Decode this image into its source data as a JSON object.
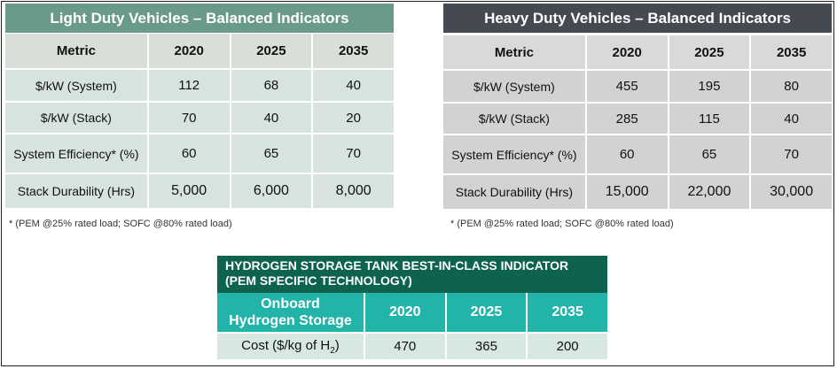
{
  "light_duty": {
    "title": "Light Duty Vehicles – Balanced Indicators",
    "header": [
      "Metric",
      "2020",
      "2025",
      "2035"
    ],
    "rows": [
      [
        "$/kW (System)",
        "112",
        "68",
        "40"
      ],
      [
        "$/kW (Stack)",
        "70",
        "40",
        "20"
      ],
      [
        "System Efficiency* (%)",
        "60",
        "65",
        "70"
      ],
      [
        "Stack Durability (Hrs)",
        "5,000",
        "6,000",
        "8,000"
      ]
    ],
    "footnote": "* (PEM @25% rated load;  SOFC @80% rated load)"
  },
  "heavy_duty": {
    "title": "Heavy Duty Vehicles – Balanced Indicators",
    "header": [
      "Metric",
      "2020",
      "2025",
      "2035"
    ],
    "rows": [
      [
        "$/kW (System)",
        "455",
        "195",
        "80"
      ],
      [
        "$/kW (Stack)",
        "285",
        "115",
        "40"
      ],
      [
        "System Efficiency* (%)",
        "60",
        "65",
        "70"
      ],
      [
        "Stack Durability (Hrs)",
        "15,000",
        "22,000",
        "30,000"
      ]
    ],
    "footnote": "* (PEM @25% rated load;  SOFC @80% rated load)"
  },
  "hydrogen_storage": {
    "title_line1": "HYDROGEN STORAGE TANK BEST-IN-CLASS INDICATOR",
    "title_line2": "(PEM SPECIFIC TECHNOLOGY)",
    "header_label_line1": "Onboard",
    "header_label_line2": "Hydrogen Storage",
    "years": [
      "2020",
      "2025",
      "2035"
    ],
    "row_label_prefix": "Cost ($/kg of H",
    "row_label_subscript": "2",
    "row_label_suffix": ")",
    "values": [
      "470",
      "365",
      "200"
    ]
  },
  "colors": {
    "light_title": "#6a9a8b",
    "heavy_title": "#454a52",
    "storage_title": "#0d6250",
    "storage_header": "#22b3a9"
  }
}
